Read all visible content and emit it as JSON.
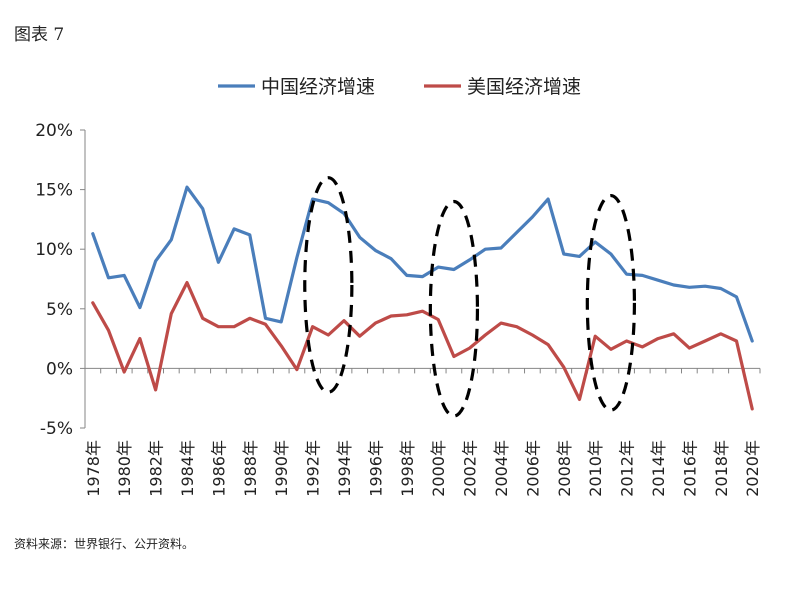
{
  "figure_label": "图表 7",
  "source_note": "资料来源：世界银行、公开资料。",
  "colors": {
    "china": "#4A7EBB",
    "usa": "#BE4B48",
    "axis": "#868686",
    "ellipse": "#000000"
  },
  "chart_data": {
    "type": "line",
    "title": "",
    "xlabel": "",
    "ylabel": "",
    "ylim": [
      -5,
      20
    ],
    "yticks": [
      -5,
      0,
      5,
      10,
      15,
      20
    ],
    "ytick_labels": [
      "-5%",
      "0%",
      "5%",
      "10%",
      "15%",
      "20%"
    ],
    "grid": false,
    "legend_position": "top-center",
    "categories": [
      "1978年",
      "1979年",
      "1980年",
      "1981年",
      "1982年",
      "1983年",
      "1984年",
      "1985年",
      "1986年",
      "1987年",
      "1988年",
      "1989年",
      "1990年",
      "1991年",
      "1992年",
      "1993年",
      "1994年",
      "1995年",
      "1996年",
      "1997年",
      "1998年",
      "1999年",
      "2000年",
      "2001年",
      "2002年",
      "2003年",
      "2004年",
      "2005年",
      "2006年",
      "2007年",
      "2008年",
      "2009年",
      "2010年",
      "2011年",
      "2012年",
      "2013年",
      "2014年",
      "2015年",
      "2016年",
      "2017年",
      "2018年",
      "2019年",
      "2020年"
    ],
    "xtick_labels": [
      "1978年",
      "1980年",
      "1982年",
      "1984年",
      "1986年",
      "1988年",
      "1990年",
      "1992年",
      "1994年",
      "1996年",
      "1998年",
      "2000年",
      "2002年",
      "2004年",
      "2006年",
      "2008年",
      "2010年",
      "2012年",
      "2014年",
      "2016年",
      "2018年",
      "2020年"
    ],
    "series": [
      {
        "name": "中国经济增速",
        "values": [
          11.3,
          7.6,
          7.8,
          5.1,
          9.0,
          10.8,
          15.2,
          13.4,
          8.9,
          11.7,
          11.2,
          4.2,
          3.9,
          9.3,
          14.2,
          13.9,
          13.0,
          11.0,
          9.9,
          9.2,
          7.8,
          7.7,
          8.5,
          8.3,
          9.1,
          10.0,
          10.1,
          11.4,
          12.7,
          14.2,
          9.6,
          9.4,
          10.6,
          9.6,
          7.9,
          7.8,
          7.4,
          7.0,
          6.8,
          6.9,
          6.7,
          6.0,
          2.3
        ]
      },
      {
        "name": "美国经济增速",
        "values": [
          5.5,
          3.2,
          -0.3,
          2.5,
          -1.8,
          4.6,
          7.2,
          4.2,
          3.5,
          3.5,
          4.2,
          3.7,
          1.9,
          -0.1,
          3.5,
          2.8,
          4.0,
          2.7,
          3.8,
          4.4,
          4.5,
          4.8,
          4.1,
          1.0,
          1.7,
          2.8,
          3.8,
          3.5,
          2.8,
          2.0,
          0.1,
          -2.6,
          2.7,
          1.6,
          2.3,
          1.8,
          2.5,
          2.9,
          1.7,
          2.3,
          2.9,
          2.3,
          -3.4
        ]
      }
    ],
    "annotations": [
      {
        "type": "dashed-ellipse",
        "x_range": [
          "1992年",
          "1994年"
        ],
        "y_range": [
          -2,
          16
        ]
      },
      {
        "type": "dashed-ellipse",
        "x_range": [
          "2000年",
          "2002年"
        ],
        "y_range": [
          -4,
          14
        ]
      },
      {
        "type": "dashed-ellipse",
        "x_range": [
          "2010年",
          "2012年"
        ],
        "y_range": [
          -3.5,
          14.5
        ]
      }
    ]
  }
}
